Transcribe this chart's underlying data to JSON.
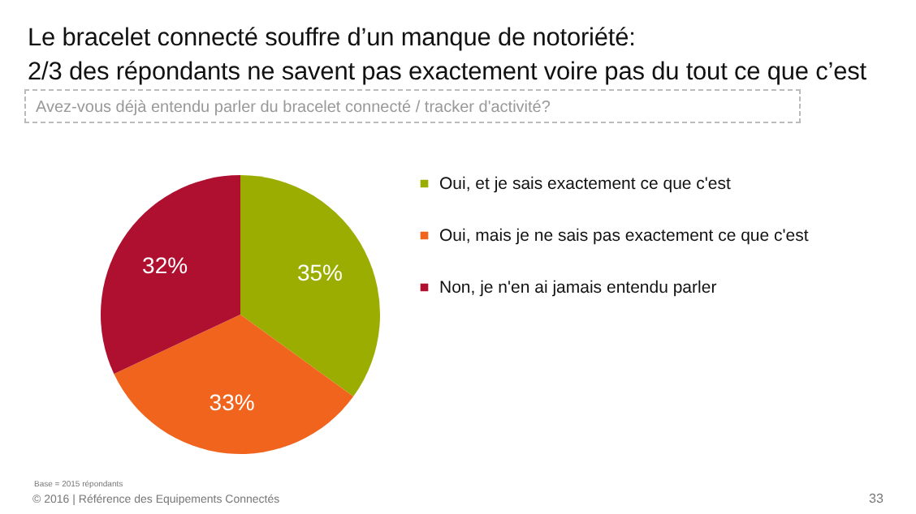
{
  "chart_data": {
    "type": "pie",
    "title": "Le bracelet connecté souffre d’un manque de notoriété:\n2/3 des répondants ne savent pas exactement voire pas du tout ce que c’est",
    "subtitle": "Avez-vous déjà entendu parler du bracelet connecté / tracker d'activité?",
    "categories": [
      "Oui, et je sais exactement ce que c'est",
      "Oui, mais je ne sais pas exactement ce que c'est",
      "Non, je n'en ai jamais entendu parler"
    ],
    "values": [
      35,
      33,
      32
    ],
    "colors": [
      "#9aad00",
      "#f0641e",
      "#b01030"
    ],
    "value_labels": [
      "35%",
      "33%",
      "32%"
    ],
    "legend": "right",
    "annotations": [
      "Base = 2015 répondants",
      "© 2016 | Référence des Equipements Connectés",
      "33"
    ]
  }
}
